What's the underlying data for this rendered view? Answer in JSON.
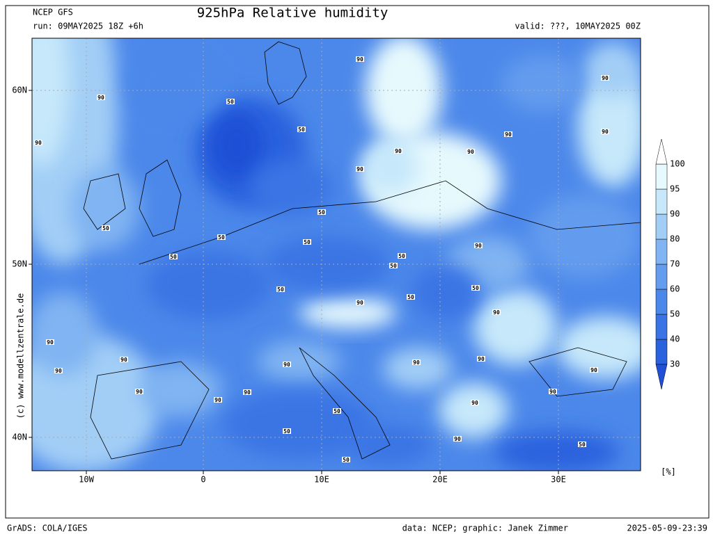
{
  "header": {
    "model": "NCEP GFS",
    "run": "run: 09MAY2025 18Z +6h",
    "title": "925hPa Relative humidity",
    "valid": "valid: ???, 10MAY2025 00Z"
  },
  "map": {
    "lon_labels": [
      "10W",
      "0",
      "10E",
      "20E",
      "30E"
    ],
    "lat_labels": [
      "60N",
      "50N",
      "40N"
    ],
    "contour_labels": [
      "90",
      "90",
      "50",
      "90",
      "90",
      "50",
      "90",
      "90",
      "90",
      "90",
      "90",
      "50",
      "50",
      "50",
      "50",
      "90",
      "50",
      "50",
      "50",
      "50",
      "50",
      "50",
      "90",
      "90",
      "90",
      "90",
      "90",
      "90",
      "90",
      "90",
      "90",
      "90",
      "90",
      "90",
      "90",
      "90",
      "50",
      "50",
      "90",
      "50",
      "50"
    ]
  },
  "colorbar": {
    "levels": [
      30,
      40,
      50,
      60,
      70,
      80,
      90,
      95,
      100
    ],
    "colors": [
      "#1f50d6",
      "#2a62de",
      "#3a74e4",
      "#4c88ea",
      "#649cee",
      "#80b4f2",
      "#a2cef6",
      "#c6e8fa",
      "#e6f9fd",
      "#ffffff"
    ],
    "unit": "[%]"
  },
  "watermark": "(c) www.modellzentrale.de",
  "footer": {
    "left": "GrADS: COLA/IGES",
    "credits": "data: NCEP; graphic: Janek Zimmer",
    "timestamp": "2025-05-09-23:39"
  }
}
